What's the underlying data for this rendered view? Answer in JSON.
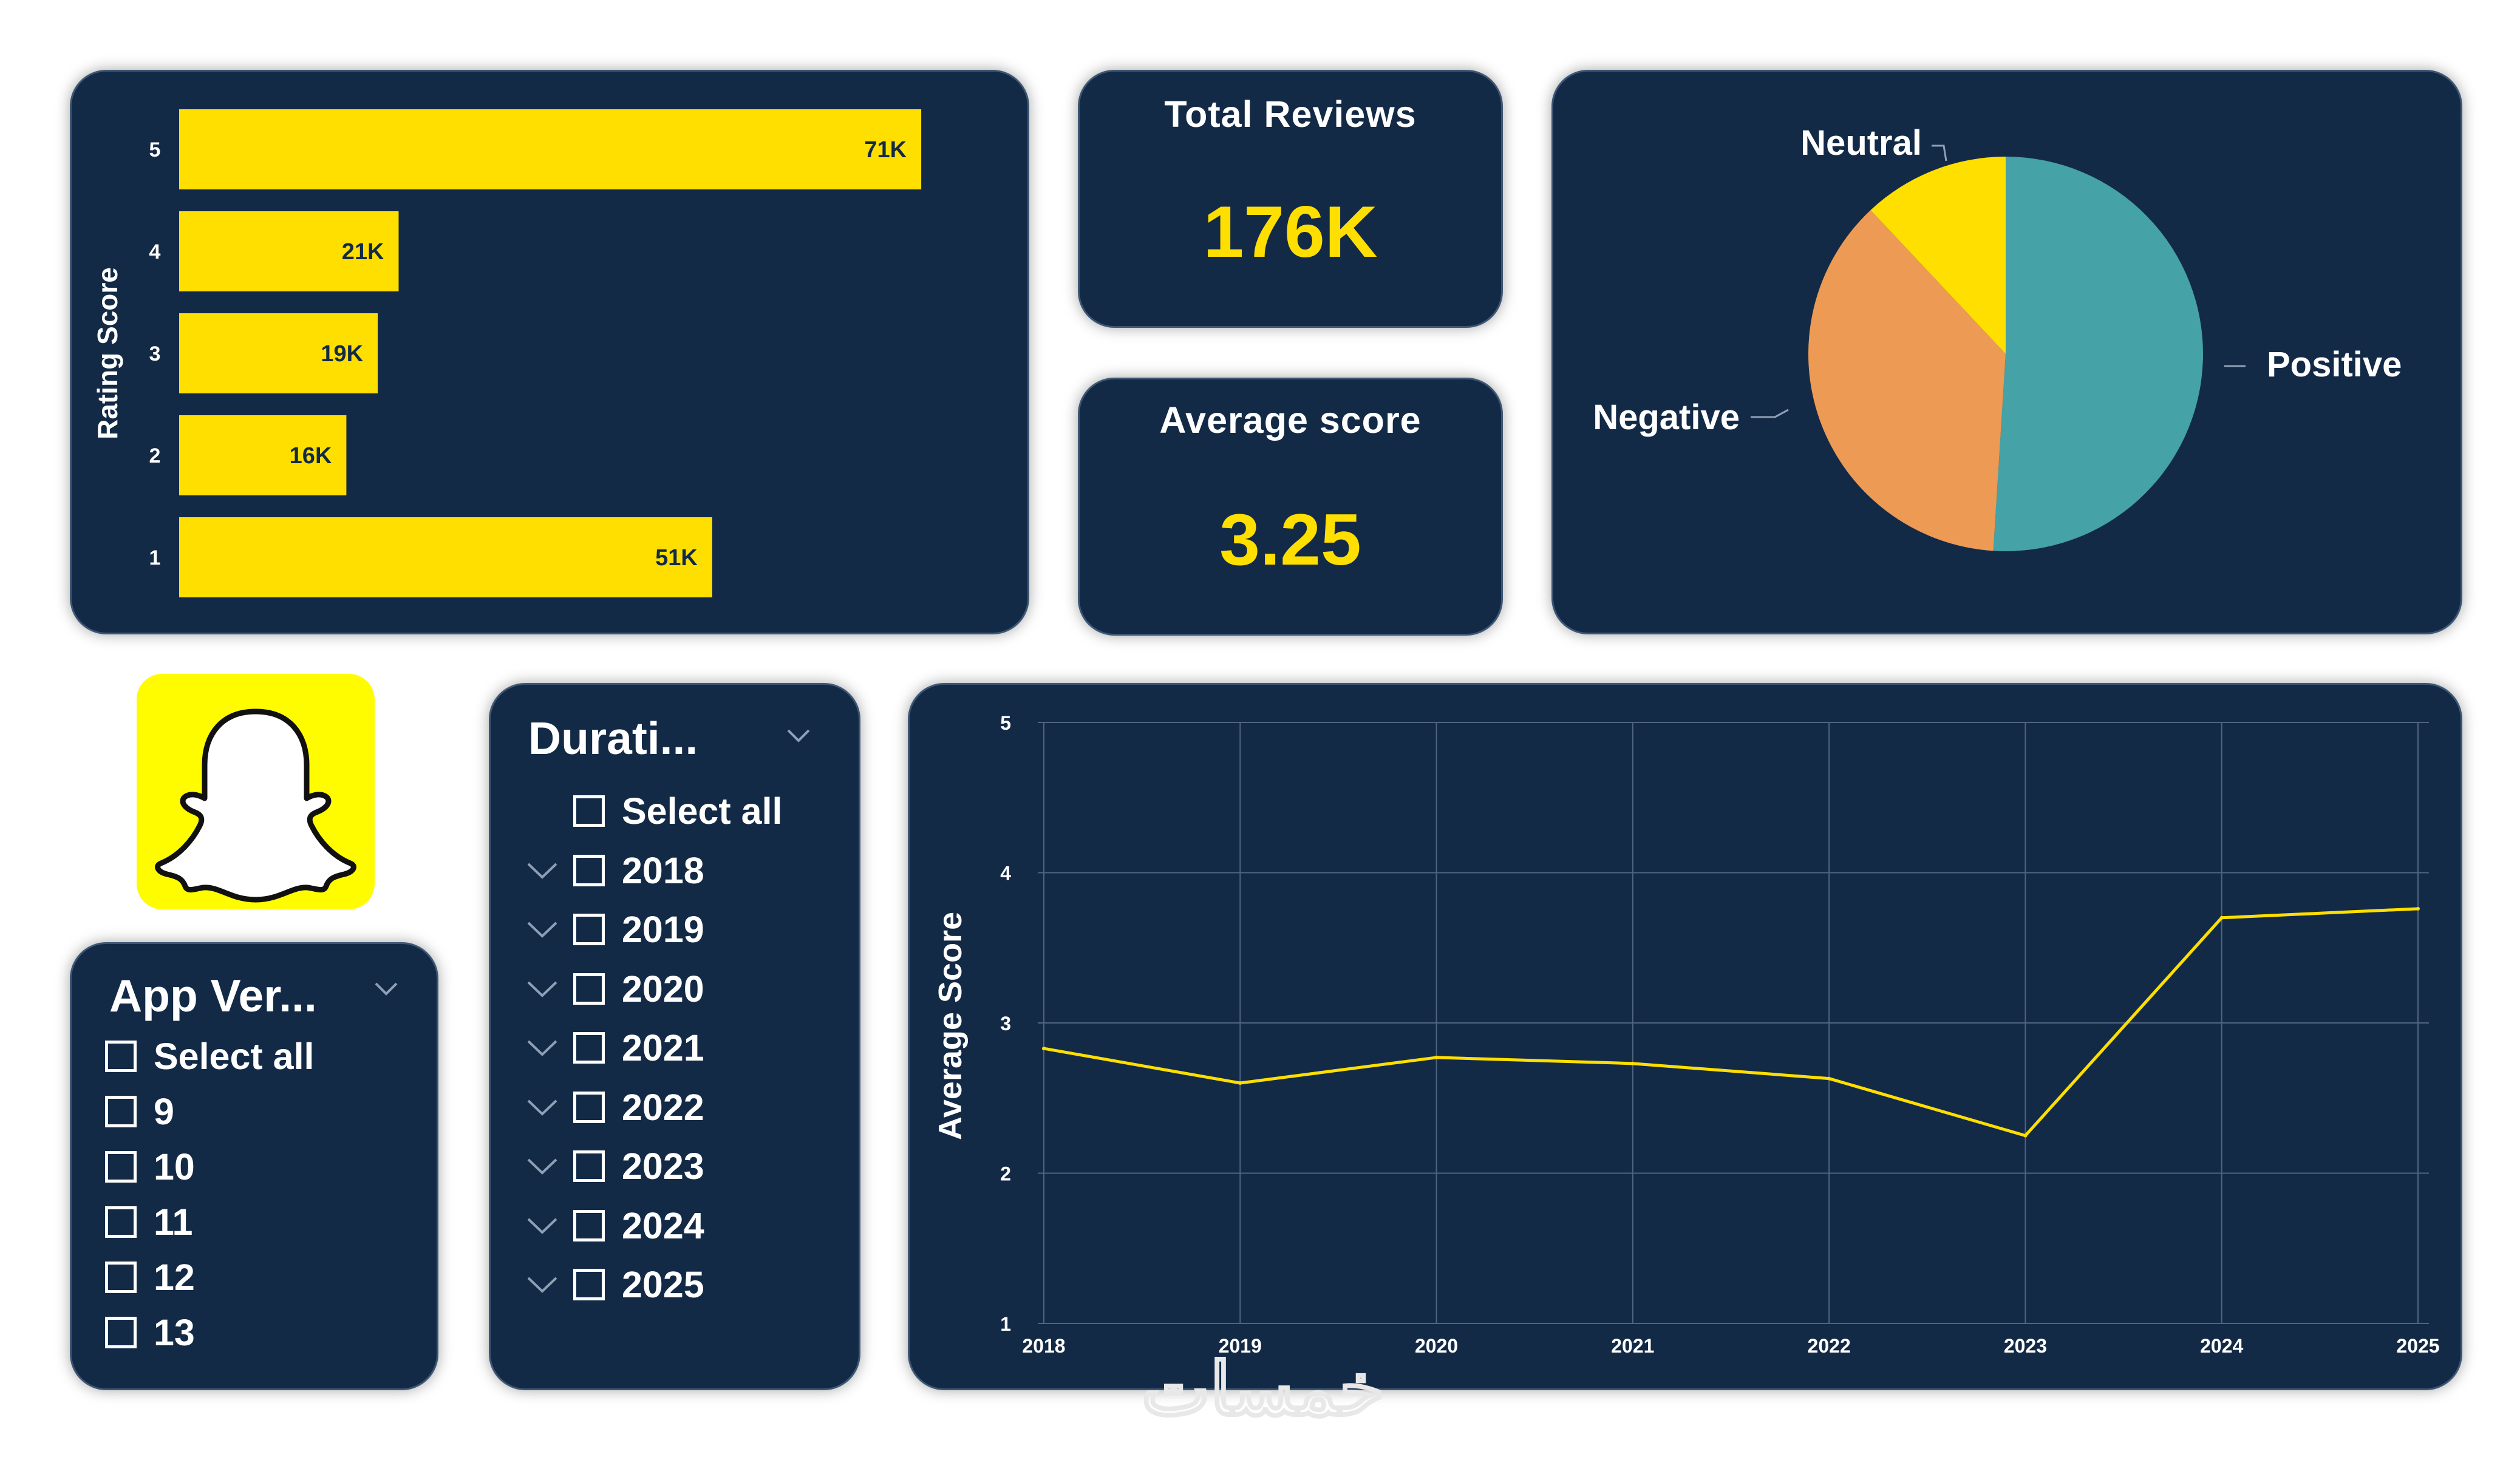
{
  "colors": {
    "background": "#ffffff",
    "card_bg": "#132a47",
    "accent_yellow": "#ffdf00",
    "bar_yellow": "#ffdf00",
    "positive": "#45a2a6",
    "negative": "#ec9a54",
    "neutral": "#ffdf00",
    "logo_bg": "#fffc00"
  },
  "rating_chart": {
    "ylabel": "Rating Score",
    "chart_data": {
      "type": "bar",
      "orientation": "horizontal",
      "categories": [
        "5",
        "4",
        "3",
        "2",
        "1"
      ],
      "values": [
        71000,
        21000,
        19000,
        16000,
        51000
      ],
      "data_labels": [
        "71K",
        "21K",
        "19K",
        "16K",
        "51K"
      ],
      "title": "",
      "xlabel": "",
      "ylabel": "Rating Score"
    }
  },
  "kpis": {
    "total_reviews": {
      "title": "Total Reviews",
      "value": "176K"
    },
    "average_score": {
      "title": "Average score",
      "value": "3.25"
    }
  },
  "sentiment_chart": {
    "chart_data": {
      "type": "pie",
      "slices": [
        {
          "label": "Positive",
          "value": 51
        },
        {
          "label": "Negative",
          "value": 37
        },
        {
          "label": "Neutral",
          "value": 12
        }
      ],
      "title": ""
    }
  },
  "logo": {
    "icon": "snapchat-ghost-icon"
  },
  "app_version_slicer": {
    "title": "App Ver...",
    "items": [
      "Select all",
      "9",
      "10",
      "11",
      "12",
      "13"
    ]
  },
  "duration_slicer": {
    "title": "Durati...",
    "items": [
      "Select all",
      "2018",
      "2019",
      "2020",
      "2021",
      "2022",
      "2023",
      "2024",
      "2025"
    ]
  },
  "score_trend": {
    "chart_data": {
      "type": "line",
      "x": [
        "2018",
        "2019",
        "2020",
        "2021",
        "2022",
        "2023",
        "2024",
        "2025"
      ],
      "series": [
        {
          "values": [
            2.83,
            2.6,
            2.77,
            2.73,
            2.63,
            2.25,
            3.7,
            3.76
          ]
        }
      ],
      "yticks": [
        "1",
        "2",
        "3",
        "4",
        "5"
      ],
      "ylim": [
        1,
        5
      ],
      "title": "",
      "xlabel": "",
      "ylabel": "Average Score",
      "grid": true
    }
  },
  "watermark": {
    "text": "خمسات"
  }
}
